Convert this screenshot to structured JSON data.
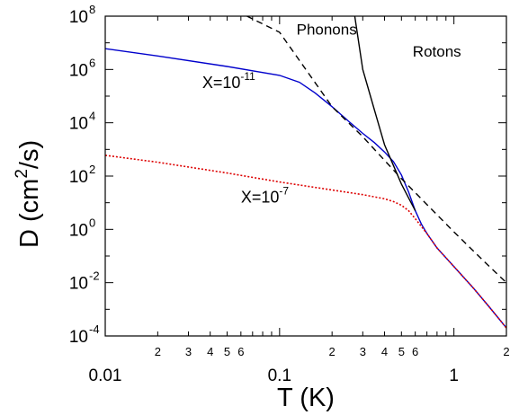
{
  "chart_data": {
    "type": "line",
    "x_scale": "log",
    "y_scale": "log",
    "xlim": [
      0.01,
      2
    ],
    "ylim": [
      0.0001,
      100000000
    ],
    "xlabel": "T (K)",
    "ylabel_main": "D  (cm",
    "ylabel_sup": "2",
    "ylabel_tail": "/s)",
    "grid": false,
    "x_major_ticks": [
      {
        "value": 0.01,
        "label": "0.01"
      },
      {
        "value": 0.1,
        "label": "0.1"
      },
      {
        "value": 1,
        "label": "1"
      }
    ],
    "x_minor_tick_labels": [
      {
        "value": 0.02,
        "label": "2"
      },
      {
        "value": 0.03,
        "label": "3"
      },
      {
        "value": 0.04,
        "label": "4"
      },
      {
        "value": 0.05,
        "label": "5"
      },
      {
        "value": 0.06,
        "label": "6"
      },
      {
        "value": 0.2,
        "label": "2"
      },
      {
        "value": 0.3,
        "label": "3"
      },
      {
        "value": 0.4,
        "label": "4"
      },
      {
        "value": 0.5,
        "label": "5"
      },
      {
        "value": 0.6,
        "label": "6"
      },
      {
        "value": 2,
        "label": "2"
      }
    ],
    "y_ticks": [
      {
        "value": 0.0001,
        "base": "10",
        "exp": "-4"
      },
      {
        "value": 0.01,
        "base": "10",
        "exp": "-2"
      },
      {
        "value": 1,
        "base": "10",
        "exp": "0"
      },
      {
        "value": 100,
        "base": "10",
        "exp": "2"
      },
      {
        "value": 10000,
        "base": "10",
        "exp": "4"
      },
      {
        "value": 1000000,
        "base": "10",
        "exp": "6"
      },
      {
        "value": 100000000,
        "base": "10",
        "exp": "8"
      }
    ],
    "series": [
      {
        "color": "#0000cc",
        "style": "solid",
        "x": [
          0.01,
          0.02,
          0.05,
          0.1,
          0.13,
          0.16,
          0.2,
          0.25,
          0.3,
          0.35,
          0.4,
          0.45,
          0.5,
          0.55,
          0.6,
          0.65,
          0.7,
          0.8,
          1.0,
          1.3,
          1.6,
          2.0
        ],
        "y": [
          6000000,
          3200000,
          1300000,
          600000,
          330000,
          130000,
          40000,
          11000,
          4000,
          1800,
          800,
          350,
          110,
          25,
          5,
          1.6,
          0.7,
          0.2,
          0.04,
          0.006,
          0.0012,
          0.0002
        ]
      },
      {
        "color": "#dd0000",
        "style": "dotted",
        "x": [
          0.01,
          0.02,
          0.05,
          0.1,
          0.2,
          0.3,
          0.4,
          0.45,
          0.5,
          0.55,
          0.6,
          0.65,
          0.7,
          0.8,
          1.0,
          1.3,
          1.6,
          2.0
        ],
        "y": [
          600,
          330,
          130,
          60,
          30,
          20,
          14,
          11,
          8,
          5,
          2.5,
          1.3,
          0.7,
          0.2,
          0.04,
          0.006,
          0.0012,
          0.0002
        ]
      },
      {
        "color": "#000000",
        "style": "dashed",
        "x": [
          0.065,
          0.1,
          0.2,
          0.3,
          0.5,
          1.0,
          1.5,
          2.0
        ],
        "y": [
          100000000,
          25000000,
          40000,
          3000,
          80,
          0.8,
          0.06,
          0.01
        ]
      },
      {
        "color": "#000000",
        "style": "solid",
        "x": [
          0.27,
          0.3,
          0.35,
          0.4,
          0.45,
          0.5,
          0.55,
          0.6
        ],
        "y": [
          100000000,
          1000000,
          30000,
          1500,
          250,
          50,
          15,
          5
        ]
      }
    ],
    "annotations": [
      {
        "text": "Phonons",
        "x": 0.125,
        "y": 20000000
      },
      {
        "text": "Rotons",
        "x": 0.58,
        "y": 3000000
      }
    ],
    "labels_with_exponent": [
      {
        "base": "X=10",
        "exp": "-11",
        "x": 0.036,
        "y": 200000
      },
      {
        "base": "X=10",
        "exp": "-7",
        "x": 0.06,
        "y": 10
      }
    ]
  }
}
